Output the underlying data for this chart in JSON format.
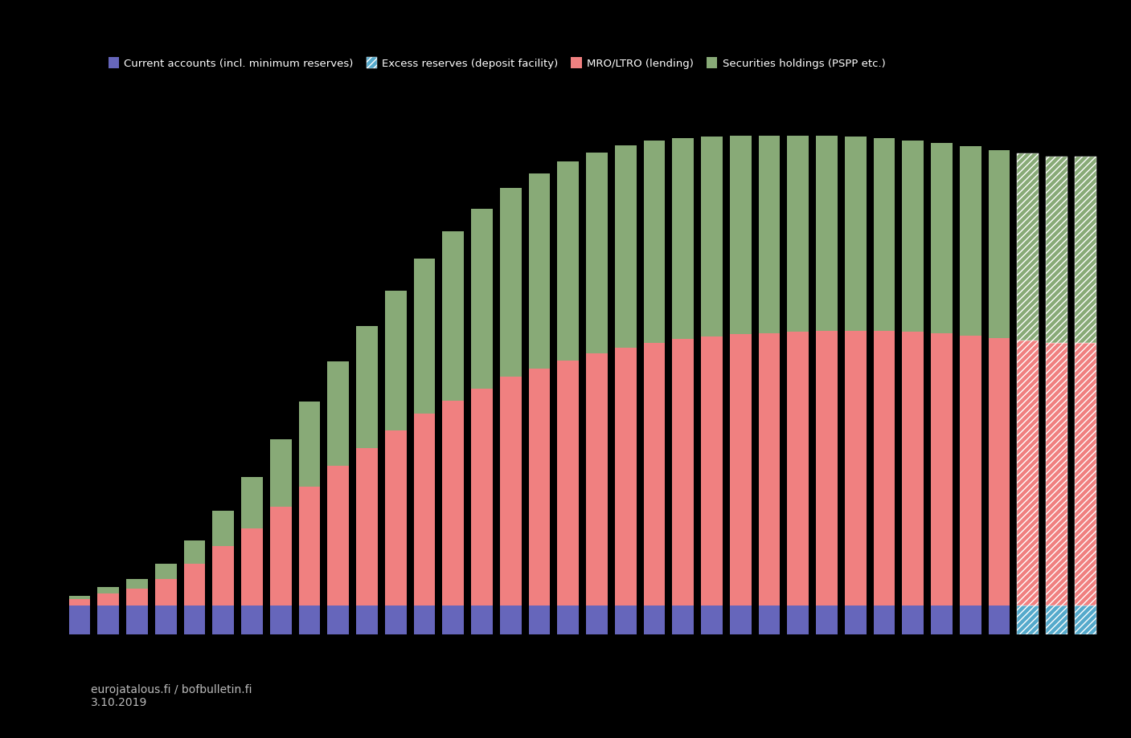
{
  "background_color": "#000000",
  "text_color": "#ffffff",
  "legend_labels": [
    "Current accounts (incl. minimum reserves)",
    "Excess reserves (deposit facility)",
    "MRO/LTRO (lending)",
    "Securities holdings (PSPP etc.)"
  ],
  "legend_colors": [
    "#6666bb",
    "#55aacc",
    "#f08080",
    "#88aa77"
  ],
  "bar_width": 0.75,
  "n_bars": 36,
  "n_hatched": 3,
  "blue_vals": [
    25,
    25,
    25,
    25,
    25,
    25,
    25,
    25,
    25,
    25,
    25,
    25,
    25,
    25,
    25,
    25,
    25,
    25,
    25,
    25,
    25,
    25,
    25,
    25,
    25,
    25,
    25,
    25,
    25,
    25,
    25,
    25,
    25,
    25,
    25,
    25
  ],
  "salmon_vals": [
    5,
    10,
    14,
    22,
    35,
    50,
    65,
    83,
    100,
    118,
    133,
    148,
    162,
    173,
    183,
    193,
    200,
    207,
    213,
    218,
    222,
    225,
    227,
    229,
    230,
    231,
    232,
    232,
    232,
    231,
    230,
    228,
    226,
    224,
    222,
    222
  ],
  "green_vals": [
    3,
    5,
    8,
    13,
    20,
    30,
    43,
    57,
    72,
    88,
    103,
    118,
    131,
    143,
    152,
    160,
    165,
    168,
    170,
    171,
    171,
    170,
    169,
    168,
    167,
    166,
    165,
    164,
    163,
    162,
    161,
    160,
    159,
    158,
    157,
    157
  ],
  "footer_line1": "eurojatalous.fi / bofbulletin.fi",
  "footer_line2": "3.10.2019"
}
